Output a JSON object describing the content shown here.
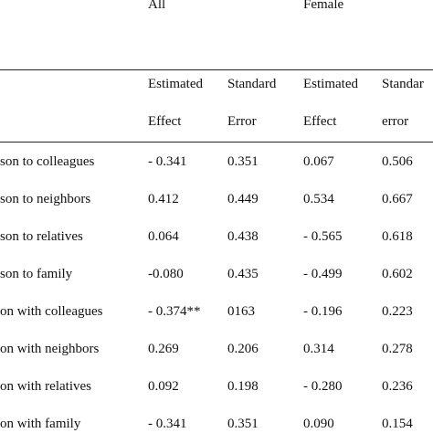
{
  "header": {
    "groups": [
      "All",
      "Female"
    ],
    "subheaders": [
      {
        "line1": "Estimated",
        "line2": "Effect"
      },
      {
        "line1": "Standard",
        "line2": "Error"
      },
      {
        "line1": "Estimated",
        "line2": "Effect"
      },
      {
        "line1": "Standar",
        "line2": "error"
      }
    ]
  },
  "rows": [
    {
      "label": "son to colleagues",
      "values": [
        "- 0.341",
        "0.351",
        "0.067",
        "0.506"
      ]
    },
    {
      "label": "son to neighbors",
      "values": [
        "0.412",
        "0.449",
        "0.534",
        "0.667"
      ]
    },
    {
      "label": "son to relatives",
      "values": [
        "0.064",
        "0.438",
        "- 0.565",
        "0.618"
      ]
    },
    {
      "label": "son to family",
      "values": [
        "-0.080",
        "0.435",
        "- 0.499",
        "0.602"
      ]
    },
    {
      "label": "on with colleagues",
      "values": [
        "- 0.374**",
        "0163",
        "- 0.196",
        "0.223"
      ]
    },
    {
      "label": "on with neighbors",
      "values": [
        "0.269",
        "0.206",
        "0.314",
        "0.278"
      ]
    },
    {
      "label": "on with relatives",
      "values": [
        "0.092",
        "0.198",
        "- 0.280",
        "0.236"
      ]
    },
    {
      "label": "on with family",
      "values": [
        "- 0.341",
        "0.351",
        "0.090",
        "0.154"
      ]
    }
  ]
}
